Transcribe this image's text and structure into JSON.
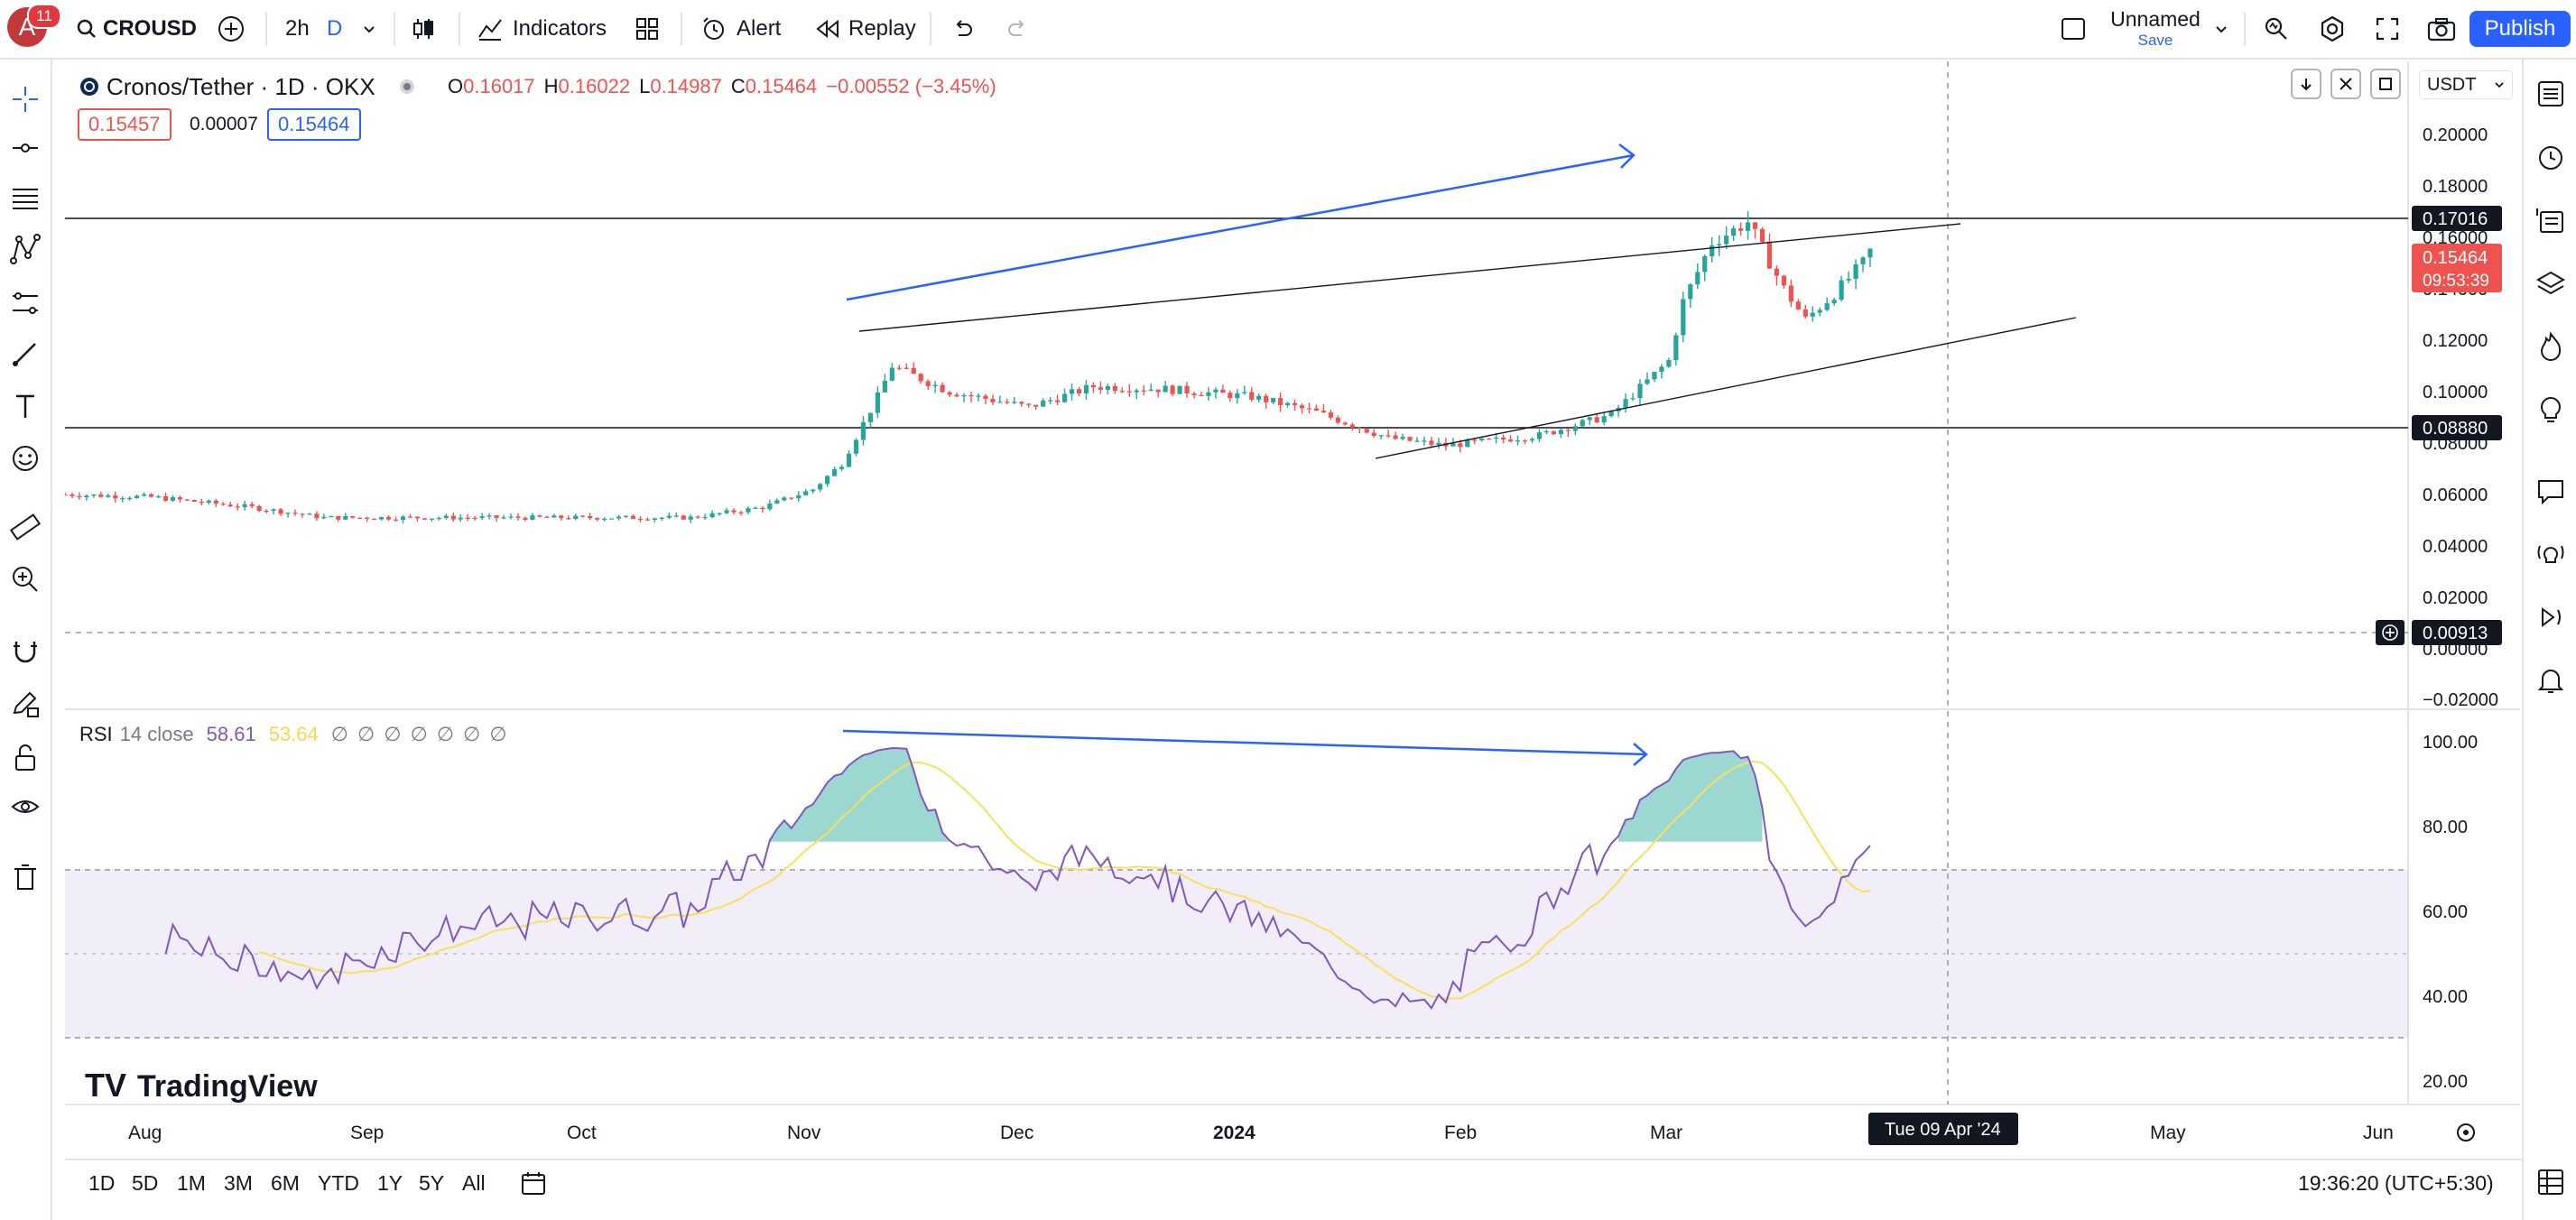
{
  "topbar": {
    "avatar_letter": "A",
    "notifications": "11",
    "symbol": "CROUSD",
    "interval": "2h",
    "interval_alt": "D",
    "indicators_label": "Indicators",
    "alert_label": "Alert",
    "replay_label": "Replay",
    "layout_name": "Unnamed",
    "layout_save": "Save",
    "publish_label": "Publish"
  },
  "legend": {
    "title": "Cronos/Tether · 1D · OKX",
    "o_label": "O",
    "o_value": "0.16017",
    "h_label": "H",
    "h_value": "0.16022",
    "l_label": "L",
    "l_value": "0.14987",
    "c_label": "C",
    "c_value": "0.15464",
    "change": "−0.00552 (−3.45%)",
    "bid": "0.15457",
    "spread": "0.00007",
    "ask": "0.15464"
  },
  "price_axis": {
    "currency": "USDT",
    "ticks": [
      "0.20000",
      "0.18000",
      "0.16000",
      "0.14000",
      "0.12000",
      "0.10000",
      "0.08000",
      "0.06000",
      "0.04000",
      "0.02000",
      "0.00000",
      "−0.02000"
    ],
    "labels": {
      "level_high": "0.17016",
      "current_price": "0.15464",
      "countdown": "09:53:39",
      "level_low": "0.08880",
      "crosshair": "0.00913"
    }
  },
  "rsi": {
    "name": "RSI",
    "params": "14 close",
    "rsi_value": "58.61",
    "ma_value": "53.64",
    "hidden_flags": "∅ ∅ ∅ ∅ ∅ ∅ ∅",
    "ticks": [
      "100.00",
      "80.00",
      "60.00",
      "40.00",
      "20.00"
    ]
  },
  "time_axis": {
    "labels": [
      "Aug",
      "Sep",
      "Oct",
      "Nov",
      "Dec",
      "2024",
      "Feb",
      "Mar",
      "Apr",
      "May",
      "Jun"
    ],
    "crosshair_date": "Tue 09 Apr '24"
  },
  "watermark": "TradingView",
  "bottombar": {
    "ranges": [
      "1D",
      "5D",
      "1M",
      "3M",
      "6M",
      "YTD",
      "1Y",
      "5Y",
      "All"
    ],
    "clock": "19:36:20 (UTC+5:30)"
  },
  "colors": {
    "up": "#26a69a",
    "down": "#ef5350",
    "rsi_line": "#7e57c2",
    "rsi_ma": "#f7e05c",
    "drawing_blue": "#2962ff",
    "accent": "#2962ff"
  },
  "chart_data": {
    "type": "candlestick",
    "symbol": "Cronos/Tether",
    "timeframe": "1D",
    "exchange": "OKX",
    "price_range": [
      -0.02,
      0.2
    ],
    "horizontal_levels": [
      0.17016,
      0.0888
    ],
    "close_series_approx": [
      [
        "2023-07-20",
        0.06
      ],
      [
        "2023-08-01",
        0.059
      ],
      [
        "2023-08-15",
        0.055
      ],
      [
        "2023-08-25",
        0.051
      ],
      [
        "2023-09-05",
        0.051
      ],
      [
        "2023-09-20",
        0.051
      ],
      [
        "2023-10-01",
        0.051
      ],
      [
        "2023-10-15",
        0.051
      ],
      [
        "2023-10-25",
        0.055
      ],
      [
        "2023-11-01",
        0.062
      ],
      [
        "2023-11-05",
        0.072
      ],
      [
        "2023-11-10",
        0.098
      ],
      [
        "2023-11-12",
        0.11
      ],
      [
        "2023-11-20",
        0.1
      ],
      [
        "2023-12-01",
        0.094
      ],
      [
        "2023-12-10",
        0.102
      ],
      [
        "2023-12-20",
        0.101
      ],
      [
        "2024-01-01",
        0.098
      ],
      [
        "2024-01-10",
        0.092
      ],
      [
        "2024-01-20",
        0.082
      ],
      [
        "2024-01-28",
        0.079
      ],
      [
        "2024-02-10",
        0.083
      ],
      [
        "2024-02-20",
        0.091
      ],
      [
        "2024-02-28",
        0.112
      ],
      [
        "2024-03-01",
        0.135
      ],
      [
        "2024-03-05",
        0.158
      ],
      [
        "2024-03-10",
        0.166
      ],
      [
        "2024-03-15",
        0.14
      ],
      [
        "2024-03-18",
        0.128
      ],
      [
        "2024-03-22",
        0.138
      ],
      [
        "2024-03-26",
        0.15
      ],
      [
        "2024-03-27",
        0.15464
      ]
    ],
    "rsi": {
      "period": 14,
      "range": [
        0,
        100
      ],
      "bands": [
        70,
        50,
        30
      ],
      "last_value": 58.61,
      "ma_last_value": 53.64
    }
  }
}
